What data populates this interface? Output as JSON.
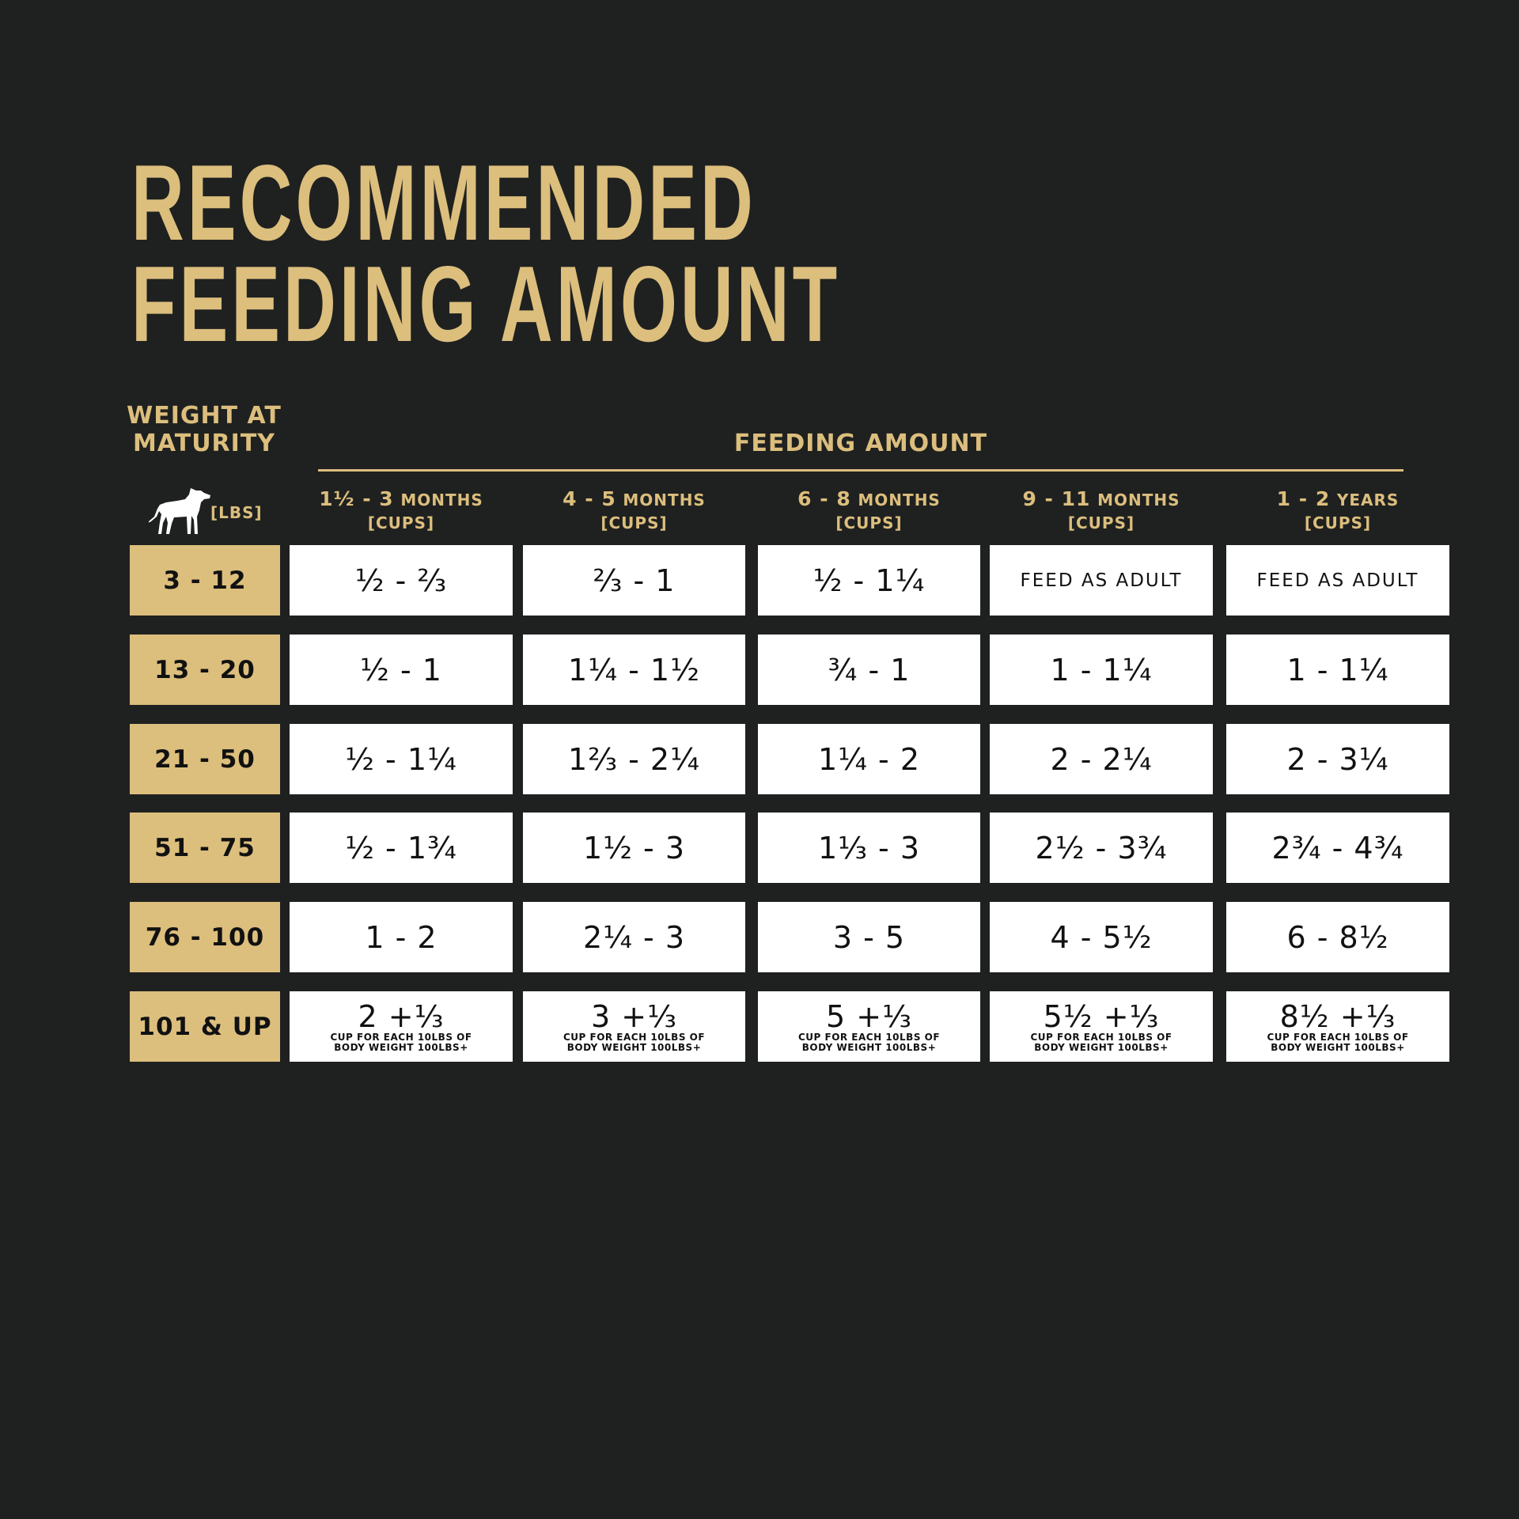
{
  "title": {
    "line1": "RECOMMENDED",
    "line2": "FEEDING AMOUNT"
  },
  "colors": {
    "background": "#1f2120",
    "gold": "#dcbe7d",
    "cell": "#ffffff"
  },
  "weight_header": {
    "line1": "WEIGHT AT",
    "line2": "MATURITY",
    "unit": "[LBS]",
    "icon": "dog-icon"
  },
  "feeding_header": "FEEDING AMOUNT",
  "columns": [
    {
      "range": "1½ - 3",
      "unit": "MONTHS",
      "sub": "[CUPS]"
    },
    {
      "range": "4 - 5",
      "unit": "MONTHS",
      "sub": "[CUPS]"
    },
    {
      "range": "6 - 8",
      "unit": "MONTHS",
      "sub": "[CUPS]"
    },
    {
      "range": "9 - 11",
      "unit": "MONTHS",
      "sub": "[CUPS]"
    },
    {
      "range": "1 - 2",
      "unit": "YEARS",
      "sub": "[CUPS]"
    }
  ],
  "rows": [
    {
      "weight": "3 - 12",
      "values": [
        "½ - ⅔",
        "⅔ - 1",
        "½ - 1¼",
        "FEED AS ADULT",
        "FEED AS ADULT"
      ]
    },
    {
      "weight": "13 - 20",
      "values": [
        "½ - 1",
        "1¼ - 1½",
        "¾ - 1",
        "1 - 1¼",
        "1 - 1¼"
      ]
    },
    {
      "weight": "21 - 50",
      "values": [
        "½ - 1¼",
        "1⅔ - 2¼",
        "1¼ - 2",
        "2 - 2¼",
        "2 - 3¼"
      ]
    },
    {
      "weight": "51 - 75",
      "values": [
        "½ - 1¾",
        "1½ - 3",
        "1⅓ - 3",
        "2½ - 3¾",
        "2¾ - 4¾"
      ]
    },
    {
      "weight": "76 - 100",
      "values": [
        "1 - 2",
        "2¼ - 3",
        "3 - 5",
        "4 - 5½",
        "6 - 8½"
      ]
    },
    {
      "weight": "101 & UP",
      "values": [
        "2 +⅓",
        "3 +⅓",
        "5 +⅓",
        "5½ +⅓",
        "8½ +⅓"
      ],
      "note_line1": "CUP FOR EACH 10LBS OF",
      "note_line2": "BODY WEIGHT 100LBS+"
    }
  ]
}
